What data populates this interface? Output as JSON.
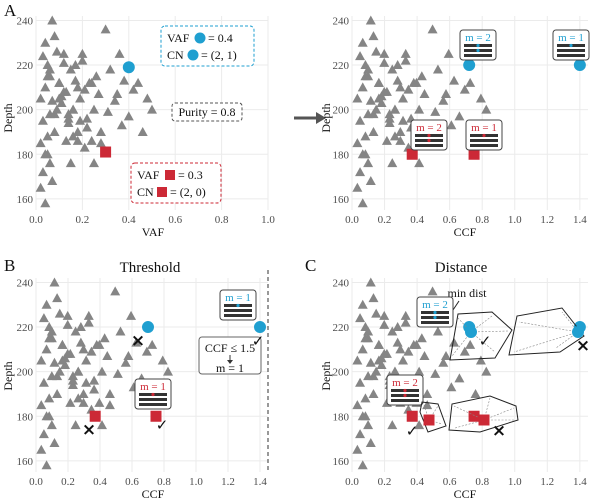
{
  "colors": {
    "triangle": "#858585",
    "circle": "#1f9fd0",
    "square": "#cc2936",
    "grid": "#ebebeb",
    "box_blue": "#1f9fd0",
    "box_red": "#cc2936"
  },
  "panels": [
    {
      "label": "A",
      "title": "",
      "xlabel": "VAF",
      "ylabel": "Depth"
    },
    {
      "label": "",
      "title": "",
      "xlabel": "CCF",
      "ylabel": "Depth"
    },
    {
      "label": "B",
      "title": "Threshold",
      "xlabel": "CCF",
      "ylabel": "Depth"
    },
    {
      "label": "C",
      "title": "Distance",
      "xlabel": "CCF",
      "ylabel": "Depth"
    }
  ],
  "annotations": {
    "vaf_blue": "VAF",
    "vaf_blue_val": "= 0.4",
    "cn_blue": "CN",
    "cn_blue_val": "= (2, 1)",
    "purity": "Purity = 0.8",
    "vaf_red": "VAF",
    "vaf_red_val": "= 0.3",
    "cn_red": "CN",
    "cn_red_val": "= (2, 0)",
    "m2": "m = 2",
    "m1": "m = 1",
    "thr_line1": "CCF ≤ 1.5",
    "thr_line2": "m = 1",
    "min_dist": "min dist",
    "check": "✓",
    "cross": "×"
  },
  "chart_data": [
    {
      "type": "scatter",
      "xlim": [
        0,
        1
      ],
      "ylim": [
        155,
        242
      ],
      "x_ticks": [
        "0.0",
        "0.2",
        "0.4",
        "0.6",
        "0.8",
        "1.0"
      ],
      "y_ticks": [
        "160",
        "180",
        "200",
        "220",
        "240"
      ],
      "series": [
        {
          "marker": "triangle",
          "x": [
            0.02,
            0.03,
            0.04,
            0.05,
            0.05,
            0.06,
            0.07,
            0.08,
            0.09,
            0.1,
            0.11,
            0.12,
            0.13,
            0.14,
            0.15,
            0.16,
            0.17,
            0.18,
            0.19,
            0.2,
            0.21,
            0.22,
            0.23,
            0.24,
            0.25,
            0.26,
            0.27,
            0.28,
            0.3,
            0.32,
            0.34,
            0.36,
            0.38,
            0.4,
            0.42,
            0.44,
            0.46,
            0.48,
            0.5,
            0.04,
            0.06,
            0.08,
            0.1,
            0.12,
            0.14,
            0.16,
            0.18,
            0.2,
            0.22,
            0.24,
            0.03,
            0.05,
            0.07,
            0.09,
            0.11,
            0.13,
            0.15,
            0.17,
            0.19,
            0.21,
            0.02,
            0.04,
            0.06,
            0.08,
            0.1,
            0.12,
            0.14,
            0.16,
            0.18,
            0.35,
            0.37,
            0.25,
            0.28,
            0.31,
            0.03,
            0.05,
            0.07,
            0.02,
            0.04,
            0.06
          ],
          "y": [
            205,
            195,
            210,
            188,
            220,
            215,
            240,
            198,
            226,
            212,
            203,
            225,
            208,
            194,
            218,
            200,
            213,
            190,
            205,
            222,
            209,
            196,
            212,
            186,
            200,
            215,
            207,
            190,
            236,
            218,
            204,
            225,
            213,
            197,
            209,
            212,
            190,
            205,
            200,
            230,
            218,
            233,
            205,
            221,
            198,
            188,
            210,
            225,
            192,
            212,
            172,
            180,
            168,
            200,
            206,
            186,
            176,
            220,
            195,
            183,
            165,
            158,
            176,
            190,
            212,
            208,
            196,
            200,
            186,
            207,
            193,
            176,
            185,
            199,
            224,
            215,
            204,
            185,
            180,
            198
          ]
        },
        {
          "marker": "circle",
          "x": [
            0.4
          ],
          "y": [
            219
          ]
        },
        {
          "marker": "square",
          "x": [
            0.3
          ],
          "y": [
            181
          ]
        }
      ]
    },
    {
      "type": "scatter",
      "xlim": [
        0,
        1.45
      ],
      "ylim": [
        155,
        242
      ],
      "x_ticks": [
        "0.0",
        "0.2",
        "0.4",
        "0.6",
        "0.8",
        "1.0",
        "1.2",
        "1.4"
      ],
      "y_ticks": [
        "160",
        "180",
        "200",
        "220",
        "240"
      ],
      "series": [
        {
          "marker": "triangle"
        },
        {
          "marker": "circle",
          "x": [
            0.72,
            1.4
          ],
          "y": [
            220,
            220
          ]
        },
        {
          "marker": "square",
          "x": [
            0.37,
            0.75
          ],
          "y": [
            180,
            180
          ]
        }
      ]
    },
    {
      "type": "scatter",
      "xlim": [
        0,
        1.45
      ],
      "ylim": [
        155,
        242
      ],
      "x_ticks": [
        "0.0",
        "0.2",
        "0.4",
        "0.6",
        "0.8",
        "1.0",
        "1.2",
        "1.4"
      ],
      "y_ticks": [
        "160",
        "180",
        "200",
        "220",
        "240"
      ],
      "threshold": 1.5,
      "series": [
        {
          "marker": "triangle"
        },
        {
          "marker": "circle",
          "x": [
            0.7,
            1.4
          ],
          "y": [
            220,
            220
          ]
        },
        {
          "marker": "square",
          "x": [
            0.37,
            0.75
          ],
          "y": [
            180,
            180
          ]
        }
      ]
    },
    {
      "type": "scatter",
      "xlim": [
        0,
        1.45
      ],
      "ylim": [
        155,
        242
      ],
      "x_ticks": [
        "0.0",
        "0.2",
        "0.4",
        "0.6",
        "0.8",
        "1.0",
        "1.2",
        "1.4"
      ],
      "y_ticks": [
        "160",
        "180",
        "200",
        "220",
        "240"
      ],
      "series": [
        {
          "marker": "triangle"
        },
        {
          "marker": "circle",
          "x": [
            0.72,
            1.4
          ],
          "y": [
            220,
            220
          ]
        },
        {
          "marker": "square",
          "x": [
            0.37,
            0.75
          ],
          "y": [
            180,
            180
          ]
        }
      ]
    }
  ]
}
